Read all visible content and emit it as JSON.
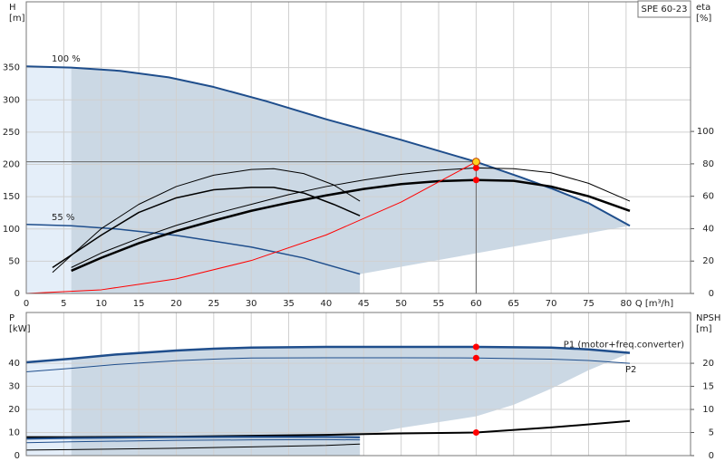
{
  "chart_data": [
    {
      "type": "line",
      "title": "SPE 60-23",
      "xlabel": "Q [m³/h]",
      "ylabel": "H",
      "yunit": "[m]",
      "y2label": "eta",
      "y2unit": "[%]",
      "xlim": [
        0,
        88.6
      ],
      "xticks": [
        0,
        5,
        10,
        15,
        20,
        25,
        30,
        35,
        40,
        45,
        50,
        55,
        60,
        65,
        70,
        75,
        80
      ],
      "ylim": [
        0,
        452
      ],
      "yticks": [
        0,
        50,
        100,
        150,
        200,
        250,
        300,
        350
      ],
      "y2lim": [
        0,
        180
      ],
      "y2ticks": [
        0,
        20,
        40,
        60,
        80,
        100
      ],
      "grid": true,
      "areas": [
        {
          "color": "#e4eef9",
          "x": [
            0,
            0,
            6,
            6
          ],
          "y": [
            0,
            352,
            350,
            0
          ]
        },
        {
          "color": "#cbd8e4",
          "x": [
            6,
            6,
            12.5,
            19,
            25,
            32,
            40,
            50,
            60,
            66,
            70,
            75,
            80.5,
            44.5,
            44.5
          ],
          "y": [
            0,
            350,
            345,
            335,
            320,
            298,
            270,
            238,
            204,
            180,
            163,
            140,
            105,
            30,
            0
          ]
        }
      ],
      "series": [
        {
          "name": "100 %",
          "color": "#1f4e8c",
          "width": 2,
          "x": [
            0,
            6,
            12.5,
            19,
            25,
            32,
            40,
            50,
            60,
            66,
            70,
            75,
            80.5
          ],
          "values": [
            352,
            350,
            345,
            335,
            320,
            298,
            270,
            238,
            204,
            180,
            163,
            140,
            105
          ]
        },
        {
          "name": "55 %",
          "color": "#1f4e8c",
          "width": 1.5,
          "x": [
            0,
            6,
            12,
            20,
            30,
            37,
            44.5
          ],
          "values": [
            107,
            105,
            100,
            90,
            72,
            55,
            30
          ]
        },
        {
          "color": "#000000",
          "width": 1,
          "axis": "y2",
          "x": [
            6,
            10,
            15,
            20,
            25,
            30,
            35,
            40,
            45,
            50,
            55,
            60,
            65,
            70,
            75,
            80.5
          ],
          "values": [
            16,
            25,
            34,
            42,
            49,
            55,
            61,
            66,
            70,
            73.5,
            76,
            77.5,
            77,
            74.5,
            68,
            57
          ]
        },
        {
          "color": "#000000",
          "width": 2.5,
          "axis": "y2",
          "x": [
            6,
            10,
            15,
            20,
            25,
            30,
            35,
            40,
            45,
            50,
            55,
            60,
            65,
            70,
            75,
            80.5
          ],
          "values": [
            14,
            22,
            31,
            38.5,
            45,
            51,
            56,
            60.5,
            64.5,
            67.5,
            69.3,
            70,
            69.5,
            66,
            60,
            51
          ]
        },
        {
          "color": "#000000",
          "width": 1,
          "axis": "y2",
          "x": [
            3.5,
            10,
            15,
            20,
            25,
            30,
            33,
            37,
            41,
            44.5
          ],
          "values": [
            13,
            40,
            55,
            66,
            73,
            76.5,
            77,
            74,
            67,
            57
          ]
        },
        {
          "color": "#000000",
          "width": 1.5,
          "axis": "y2",
          "x": [
            3.5,
            10,
            15,
            20,
            25,
            30,
            33,
            37,
            41,
            44.5
          ],
          "values": [
            16,
            36,
            50,
            59,
            64,
            65.5,
            65.5,
            62,
            55,
            48
          ]
        },
        {
          "color": "#ff0000",
          "width": 1,
          "x": [
            0,
            10,
            20,
            30,
            40,
            50,
            60
          ],
          "values": [
            0,
            5.7,
            22.7,
            51,
            90.7,
            141.7,
            204
          ]
        }
      ],
      "duty_point": {
        "x": 60,
        "y": 204,
        "color": "#ffd21f"
      },
      "points": [
        {
          "x": 60,
          "y": 77.5,
          "axis": "y2",
          "color": "#ff0000"
        },
        {
          "x": 60,
          "y": 70,
          "axis": "y2",
          "color": "#ff0000"
        }
      ]
    },
    {
      "type": "line",
      "ylabel": "P",
      "yunit": "[kW]",
      "y2label": "NPSH",
      "y2unit": "[m]",
      "xlim": [
        0,
        88.6
      ],
      "xticks": [
        0,
        5,
        10,
        15,
        20,
        25,
        30,
        35,
        40,
        45,
        50,
        55,
        60,
        65,
        70,
        75,
        80
      ],
      "xtick_labels": false,
      "ylim": [
        0,
        62
      ],
      "yticks": [
        0,
        10,
        20,
        30,
        40
      ],
      "y2lim": [
        0,
        31
      ],
      "y2ticks": [
        0,
        5,
        10,
        15,
        20
      ],
      "grid": true,
      "areas": [
        {
          "color": "#e4eef9",
          "x": [
            0,
            0,
            6,
            6
          ],
          "y": [
            0,
            40.4,
            42,
            0
          ]
        },
        {
          "color": "#cbd8e4",
          "x": [
            6,
            6,
            12,
            20,
            25,
            30,
            40,
            50,
            60,
            70,
            75,
            80.5,
            75,
            70,
            65,
            60,
            50,
            44.5,
            44.5
          ],
          "y": [
            0,
            42,
            43.8,
            45.5,
            46.3,
            46.8,
            47.1,
            47.1,
            47.1,
            46.8,
            46,
            44.5,
            37,
            29,
            22,
            17,
            12,
            8.8,
            0
          ]
        }
      ],
      "series": [
        {
          "name": "P1 (motor+freq.converter)",
          "color": "#1f4e8c",
          "width": 2.5,
          "x": [
            0,
            6,
            12,
            20,
            25,
            30,
            40,
            50,
            60,
            70,
            75,
            80.5
          ],
          "values": [
            40.4,
            42,
            43.8,
            45.5,
            46.3,
            46.8,
            47.1,
            47.1,
            47.1,
            46.8,
            46,
            44.5
          ]
        },
        {
          "name": "P2",
          "color": "#1f4e8c",
          "width": 1,
          "x": [
            0,
            6,
            12,
            20,
            25,
            30,
            40,
            50,
            60,
            70,
            75,
            80.5
          ],
          "values": [
            36.3,
            37.8,
            39.5,
            41.1,
            41.8,
            42.3,
            42.4,
            42.4,
            42.3,
            41.8,
            41.2,
            40
          ]
        },
        {
          "color": "#000000",
          "width": 2,
          "axis": "y2",
          "x": [
            0,
            6,
            20,
            40,
            50,
            60,
            70,
            80.5
          ],
          "values": [
            4,
            4,
            4.1,
            4.5,
            4.8,
            5,
            6.1,
            7.5
          ]
        },
        {
          "color": "#1f4e8c",
          "width": 2,
          "x": [
            0,
            6,
            20,
            30,
            40,
            44.5
          ],
          "values": [
            7.3,
            7.6,
            8,
            8.1,
            8.1,
            7.9
          ]
        },
        {
          "color": "#1f4e8c",
          "width": 1,
          "x": [
            0,
            6,
            20,
            30,
            40,
            44.5
          ],
          "values": [
            5.6,
            6,
            6.6,
            6.8,
            6.9,
            6.8
          ]
        },
        {
          "color": "#000000",
          "width": 1,
          "axis": "y2",
          "x": [
            0,
            6,
            20,
            30,
            40,
            44.5
          ],
          "values": [
            1.2,
            1.3,
            1.6,
            1.9,
            2.2,
            2.5
          ]
        }
      ],
      "points": [
        {
          "x": 60,
          "y": 47.1,
          "color": "#ff0000"
        },
        {
          "x": 60,
          "y": 42.3,
          "color": "#ff0000"
        },
        {
          "x": 60,
          "y": 5,
          "axis": "y2",
          "color": "#ff0000"
        }
      ]
    }
  ]
}
